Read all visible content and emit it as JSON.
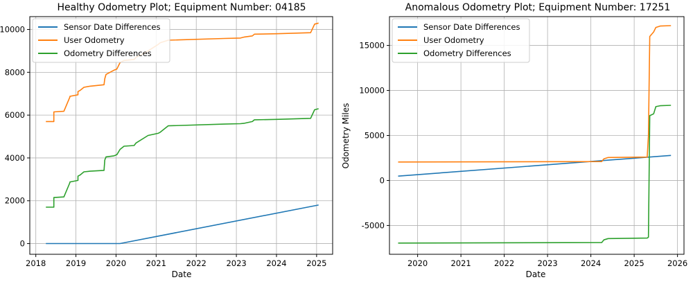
{
  "colors": {
    "blue": "#1f77b4",
    "orange": "#ff7f0e",
    "green": "#2ca02c"
  },
  "chart_data": [
    {
      "type": "line",
      "title": "Healthy Odometry Plot; Equipment Number: 04185",
      "xlabel": "Date",
      "ylabel": "",
      "xlim": [
        2017.85,
        2025.4
      ],
      "ylim": [
        -500,
        10600
      ],
      "xticks": [
        2018,
        2019,
        2020,
        2021,
        2022,
        2023,
        2024,
        2025
      ],
      "yticks": [
        0,
        2000,
        4000,
        6000,
        8000,
        10000
      ],
      "grid": true,
      "legend": "upper-left",
      "series": [
        {
          "name": "Sensor Date Differences",
          "x": [
            2018.25,
            2020.1,
            2025.05
          ],
          "y": [
            0,
            0,
            1800
          ]
        },
        {
          "name": "User Odometry",
          "x": [
            2018.25,
            2018.45,
            2018.45,
            2018.7,
            2018.85,
            2018.85,
            2019.05,
            2019.05,
            2019.1,
            2019.2,
            2019.35,
            2019.7,
            2019.72,
            2019.75,
            2019.95,
            2020.02,
            2020.1,
            2020.2,
            2020.45,
            2020.5,
            2020.8,
            2021.05,
            2021.1,
            2021.3,
            2022.7,
            2023.1,
            2023.2,
            2023.4,
            2023.45,
            2024.0,
            2024.85,
            2024.95,
            2025.05
          ],
          "y": [
            5700,
            5700,
            6150,
            6180,
            6850,
            6880,
            6950,
            7100,
            7150,
            7300,
            7350,
            7420,
            7700,
            7900,
            8100,
            8150,
            8450,
            8550,
            8600,
            8700,
            9000,
            9300,
            9380,
            9500,
            9580,
            9600,
            9650,
            9700,
            9780,
            9800,
            9850,
            10250,
            10300
          ]
        },
        {
          "name": "Odometry Differences",
          "x": [
            2018.25,
            2018.45,
            2018.45,
            2018.7,
            2018.85,
            2018.85,
            2019.05,
            2019.05,
            2019.1,
            2019.2,
            2019.35,
            2019.7,
            2019.72,
            2019.75,
            2019.95,
            2020.02,
            2020.1,
            2020.2,
            2020.45,
            2020.5,
            2020.8,
            2021.05,
            2021.1,
            2021.3,
            2022.7,
            2023.1,
            2023.2,
            2023.4,
            2023.45,
            2024.0,
            2024.85,
            2024.95,
            2025.05
          ],
          "y": [
            1700,
            1700,
            2150,
            2180,
            2850,
            2880,
            2950,
            3150,
            3200,
            3350,
            3380,
            3420,
            3900,
            4050,
            4100,
            4150,
            4400,
            4550,
            4580,
            4700,
            5050,
            5150,
            5200,
            5500,
            5580,
            5600,
            5620,
            5700,
            5780,
            5800,
            5850,
            6250,
            6300
          ]
        }
      ]
    },
    {
      "type": "line",
      "title": "Anomalous Odometry Plot; Equipment Number: 17251",
      "xlabel": "Date",
      "ylabel": "Odometry Miles",
      "xlim": [
        2019.35,
        2026.15
      ],
      "ylim": [
        -8200,
        18200
      ],
      "xticks": [
        2020,
        2021,
        2022,
        2023,
        2024,
        2025,
        2026
      ],
      "yticks": [
        -5000,
        0,
        5000,
        10000,
        15000
      ],
      "grid": true,
      "legend": "upper-left",
      "series": [
        {
          "name": "Sensor Date Differences",
          "x": [
            2019.55,
            2025.85
          ],
          "y": [
            480,
            2780
          ]
        },
        {
          "name": "User Odometry",
          "x": [
            2019.55,
            2024.25,
            2024.3,
            2024.4,
            2025.3,
            2025.33,
            2025.36,
            2025.45,
            2025.5,
            2025.6,
            2025.85
          ],
          "y": [
            2050,
            2100,
            2400,
            2550,
            2600,
            5000,
            16000,
            16500,
            17000,
            17150,
            17200
          ]
        },
        {
          "name": "Odometry Differences",
          "x": [
            2019.55,
            2024.25,
            2024.3,
            2024.4,
            2025.3,
            2025.33,
            2025.36,
            2025.45,
            2025.5,
            2025.6,
            2025.85
          ],
          "y": [
            -6950,
            -6900,
            -6600,
            -6450,
            -6400,
            -6300,
            7200,
            7400,
            8200,
            8300,
            8350
          ]
        }
      ]
    }
  ]
}
